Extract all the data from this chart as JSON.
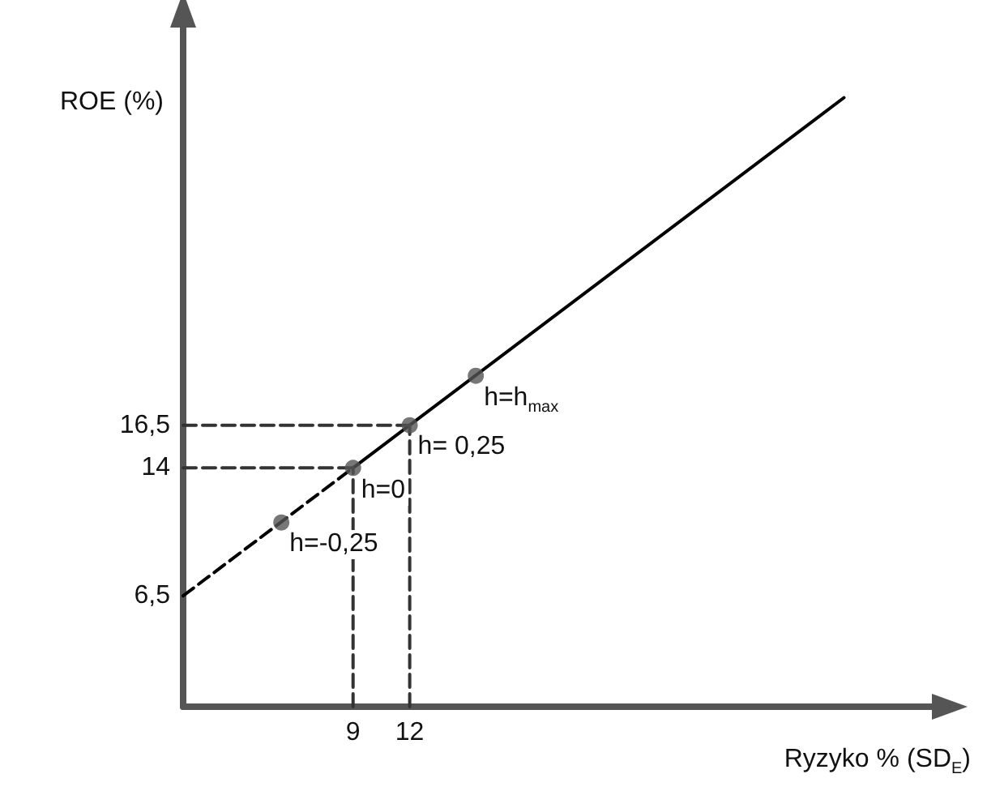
{
  "chart_data": {
    "type": "line",
    "xlabel": "Ryzyko % (SD$_{E}$)",
    "ylabel": "ROE (%)",
    "series": [
      {
        "x": [
          0,
          9
        ],
        "values": [
          6.5,
          14
        ],
        "color": "#000000",
        "line_style": "dashed",
        "marker": "none"
      },
      {
        "x": [
          9,
          35
        ],
        "values": [
          14,
          35.7
        ],
        "color": "#000000",
        "line_style": "solid",
        "marker": "none"
      },
      {
        "type": "scatter",
        "x": [
          5.2,
          9,
          12,
          15.5
        ],
        "values": [
          10.8,
          14,
          16.5,
          19.4
        ],
        "color": "#555555",
        "marker": "circle"
      },
      {
        "type": "line",
        "x": [
          0,
          12
        ],
        "values": [
          16.5,
          16.5
        ],
        "color": "#333333",
        "line_style": "dashed",
        "marker": "none"
      },
      {
        "type": "line",
        "x": [
          0,
          9
        ],
        "values": [
          14,
          14
        ],
        "color": "#333333",
        "line_style": "dashed",
        "marker": "none"
      },
      {
        "type": "line",
        "x": [
          9,
          9
        ],
        "values": [
          0,
          14
        ],
        "color": "#333333",
        "line_style": "dashed",
        "marker": "none"
      },
      {
        "type": "line",
        "x": [
          12,
          12
        ],
        "values": [
          0,
          16.5
        ],
        "color": "#333333",
        "line_style": "dashed",
        "marker": "none"
      }
    ],
    "annotations": [
      {
        "text": "h=h$_{max}$",
        "x": 15.5,
        "y": 19.4
      },
      {
        "text": "h= 0,25",
        "x": 12,
        "y": 16.5
      },
      {
        "text": "h=0",
        "x": 9,
        "y": 14
      },
      {
        "text": "h=-0,25",
        "x": 5.2,
        "y": 10.8
      }
    ],
    "xlim": [
      0,
      40
    ],
    "ylim": [
      0,
      40
    ],
    "xticks": [
      9,
      12
    ],
    "yticks": [
      {
        "value": 6.5,
        "label": "6,5"
      },
      14,
      {
        "value": 16.5,
        "label": "16,5"
      }
    ],
    "grid": false
  }
}
